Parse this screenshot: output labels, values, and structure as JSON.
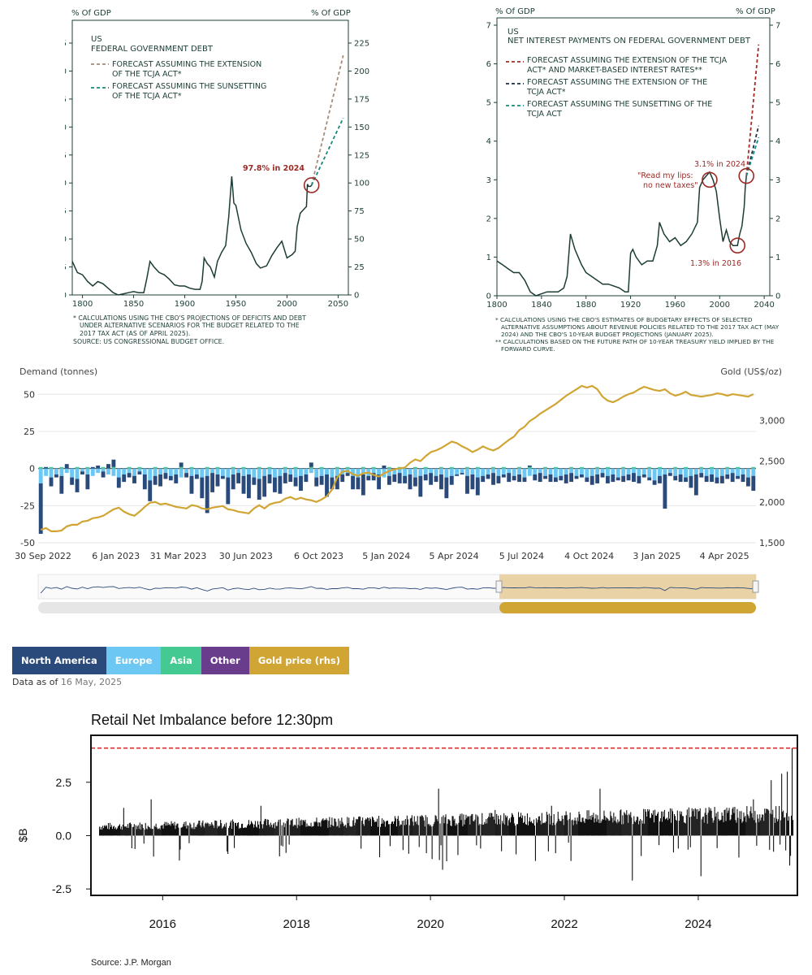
{
  "debt_chart": {
    "left_unit": "% Of GDP",
    "right_unit": "% Of GDP",
    "title_line1": "US",
    "title_line2": "FEDERAL GOVERNMENT DEBT",
    "legend_line1a": "FORECAST ASSUMING THE EXTENSION",
    "legend_line1b": "OF THE TCJA ACT*",
    "legend_line2a": "FORECAST ASSUMING THE SUNSETTING",
    "legend_line2b": "OF THE TCJA ACT*",
    "annotation": "97.8% in 2024",
    "footnote1": "* CALCULATIONS USING THE CBO'S PROJECTIONS OF DEFICITS AND DEBT",
    "footnote2": "UNDER ALTERNATIVE SCENARIOS FOR THE BUDGET RELATED TO THE",
    "footnote3": "2017 TAX ACT (AS OF APRIL 2025).",
    "footnote4": "SOURCE: US CONGRESSIONAL BUDGET OFFICE."
  },
  "interest_chart": {
    "left_unit": "% Of GDP",
    "right_unit": "% Of GDP",
    "title_line1": "US",
    "title_line2": "NET INTEREST PAYMENTS ON FEDERAL GOVERNMENT DEBT",
    "legend_line1a": "FORECAST ASSUMING THE EXTENSION OF THE TCJA",
    "legend_line1b": "ACT* AND MARKET-BASED INTEREST RATES**",
    "legend_line2a": "FORECAST ASSUMING THE EXTENSION OF THE",
    "legend_line2b": "TCJA ACT*",
    "legend_line3a": "FORECAST ASSUMING THE SUNSETTING OF THE",
    "legend_line3b": "TCJA ACT",
    "annotation_quote1": "\"Read my lips:",
    "annotation_quote2": "no new taxes\"",
    "annotation_2024": "3.1% in 2024",
    "annotation_2016": "1.3% in 2016",
    "footnote1": "* CALCULATIONS USING THE CBO'S ESTIMATES OF BUDGETARY EFFECTS OF SELECTED",
    "footnote2": "ALTERNATIVE ASSUMPTIONS ABOUT REVENUE POLICIES RELATED TO THE 2017 TAX ACT (MAY",
    "footnote3": "2024) AND THE CBO'S 10-YEAR BUDGET PROJECTIONS (JANUARY 2025).",
    "footnote4": "** CALCULATIONS BASED ON THE FUTURE PATH OF 10-YEAR TREASURY YIELD IMPLIED BY THE",
    "footnote5": "FORWARD CURVE."
  },
  "gold_chart": {
    "left_axis_title": "Demand (tonnes)",
    "right_axis_title": "Gold (US$/oz)",
    "legend": [
      "North America",
      "Europe",
      "Asia",
      "Other",
      "Gold price (rhs)"
    ],
    "as_of_label": "Data as of",
    "as_of_date": "16 May, 2025"
  },
  "retail_chart": {
    "title": "Retail Net Imbalance before 12:30pm",
    "ylabel": "$B",
    "source": "Source: J.P. Morgan"
  },
  "colors": {
    "dark_green": "#1c3d36",
    "brown_dash": "#a58b78",
    "teal_dash": "#18897a",
    "red_dash": "#a52a24",
    "navy_dash": "#1f2f49",
    "annot_red": "#9b2a25",
    "north_america": "#2a4a7b",
    "europe": "#6cc8f2",
    "asia": "#45c992",
    "other": "#6a3d8c",
    "gold": "#d1a534"
  },
  "chart_data": [
    {
      "type": "line",
      "title": "US FEDERAL GOVERNMENT DEBT",
      "ylabel": "% Of GDP",
      "xlim": [
        1790,
        2060
      ],
      "ylim": [
        0,
        225
      ],
      "xticks": [
        "1800",
        "1850",
        "1900",
        "1950",
        "2000",
        "2050"
      ],
      "yticks": [
        "0",
        "25",
        "50",
        "75",
        "100",
        "125",
        "150",
        "175",
        "200",
        "225"
      ],
      "series": [
        {
          "name": "Debt",
          "x": [
            1790,
            1795,
            1800,
            1805,
            1810,
            1815,
            1820,
            1825,
            1830,
            1835,
            1840,
            1845,
            1850,
            1855,
            1860,
            1863,
            1866,
            1870,
            1875,
            1880,
            1885,
            1890,
            1895,
            1900,
            1905,
            1910,
            1915,
            1917,
            1919,
            1922,
            1925,
            1929,
            1932,
            1936,
            1940,
            1943,
            1946,
            1948,
            1950,
            1955,
            1960,
            1965,
            1970,
            1974,
            1980,
            1985,
            1990,
            1995,
            2000,
            2005,
            2008,
            2010,
            2013,
            2016,
            2019,
            2020,
            2021,
            2022,
            2023,
            2024
          ],
          "y": [
            30,
            20,
            18,
            12,
            8,
            12,
            10,
            6,
            2,
            0,
            1,
            2,
            3,
            2,
            2,
            15,
            30,
            25,
            20,
            18,
            14,
            9,
            8,
            8,
            6,
            5,
            5,
            12,
            33,
            28,
            25,
            16,
            30,
            38,
            44,
            70,
            106,
            82,
            80,
            58,
            46,
            38,
            28,
            24,
            26,
            35,
            42,
            48,
            33,
            36,
            39,
            61,
            73,
            76,
            79,
            99,
            97,
            97,
            97,
            98
          ]
        },
        {
          "name": "FORECAST ASSUMING THE EXTENSION OF THE TCJA ACT*",
          "x": [
            2024,
            2055
          ],
          "y": [
            98,
            214
          ]
        },
        {
          "name": "FORECAST ASSUMING THE SUNSETTING OF THE TCJA ACT*",
          "x": [
            2024,
            2055
          ],
          "y": [
            98,
            158
          ]
        }
      ],
      "annotations": [
        "97.8% in 2024"
      ]
    },
    {
      "type": "line",
      "title": "US NET INTEREST PAYMENTS ON FEDERAL GOVERNMENT DEBT",
      "ylabel": "% Of GDP",
      "xlim": [
        1800,
        2045
      ],
      "ylim": [
        0,
        7
      ],
      "xticks": [
        "1800",
        "1840",
        "1880",
        "1920",
        "1960",
        "2000",
        "2040"
      ],
      "yticks": [
        "0",
        "1",
        "2",
        "3",
        "4",
        "5",
        "6",
        "7"
      ],
      "series": [
        {
          "name": "Net interest",
          "x": [
            1800,
            1805,
            1810,
            1815,
            1820,
            1825,
            1830,
            1835,
            1840,
            1845,
            1850,
            1855,
            1860,
            1863,
            1866,
            1870,
            1873,
            1876,
            1880,
            1885,
            1890,
            1895,
            1900,
            1905,
            1910,
            1915,
            1918,
            1920,
            1922,
            1925,
            1930,
            1935,
            1940,
            1944,
            1946,
            1950,
            1955,
            1960,
            1965,
            1970,
            1975,
            1980,
            1982,
            1985,
            1988,
            1991,
            1994,
            1997,
            2000,
            2003,
            2006,
            2009,
            2012,
            2016,
            2018,
            2020,
            2022,
            2023,
            2024
          ],
          "y": [
            0.9,
            0.8,
            0.7,
            0.6,
            0.6,
            0.4,
            0.1,
            0.0,
            0.05,
            0.1,
            0.1,
            0.1,
            0.2,
            0.5,
            1.6,
            1.2,
            1.0,
            0.8,
            0.6,
            0.5,
            0.4,
            0.3,
            0.3,
            0.25,
            0.2,
            0.1,
            0.1,
            1.1,
            1.2,
            1.0,
            0.8,
            0.9,
            0.9,
            1.3,
            1.9,
            1.6,
            1.4,
            1.5,
            1.3,
            1.4,
            1.6,
            1.9,
            2.8,
            3.0,
            3.1,
            3.2,
            3.0,
            2.7,
            2.0,
            1.4,
            1.7,
            1.4,
            1.3,
            1.3,
            1.6,
            1.8,
            2.3,
            2.8,
            3.1
          ]
        },
        {
          "name": "FORECAST ASSUMING THE EXTENSION OF THE TCJA ACT* AND MARKET-BASED INTEREST RATES**",
          "x": [
            2024,
            2035
          ],
          "y": [
            3.1,
            6.5
          ]
        },
        {
          "name": "FORECAST ASSUMING THE EXTENSION OF THE TCJA ACT*",
          "x": [
            2024,
            2035
          ],
          "y": [
            3.1,
            4.4
          ]
        },
        {
          "name": "FORECAST ASSUMING THE SUNSETTING OF THE TCJA ACT",
          "x": [
            2024,
            2035
          ],
          "y": [
            3.1,
            4.1
          ]
        }
      ],
      "annotations": [
        "\"Read my lips: no new taxes\"",
        "3.1% in 2024",
        "1.3% in 2016"
      ]
    },
    {
      "type": "bar",
      "title": "",
      "ylabel": "Demand (tonnes)",
      "y2label": "Gold (US$/oz)",
      "ylim": [
        -50,
        60
      ],
      "y2lim": [
        1500,
        3500
      ],
      "yticks": [
        "-50",
        "-25",
        "0",
        "25",
        "50"
      ],
      "y2ticks": [
        "1,500",
        "2,000",
        "2,500",
        "3,000"
      ],
      "xticks": [
        "30 Sep 2022",
        "6 Jan 2023",
        "31 Mar 2023",
        "30 Jun 2023",
        "6 Oct 2023",
        "5 Jan 2024",
        "5 Apr 2024",
        "5 Jul 2024",
        "4 Oct 2024",
        "3 Jan 2025",
        "4 Apr 2025"
      ],
      "weeks": 138,
      "series": [
        {
          "name": "North America",
          "values": [
            -34,
            1,
            -6,
            -2,
            -12,
            3,
            -5,
            -9,
            -2,
            -10,
            1,
            2,
            -4,
            3,
            5,
            -7,
            -5,
            -3,
            -5,
            -2,
            -10,
            -14,
            -6,
            -8,
            -4,
            -3,
            -6,
            3,
            -3,
            -12,
            -3,
            -14,
            -25,
            -13,
            -8,
            -2,
            -18,
            -10,
            -7,
            -12,
            -16,
            -5,
            -14,
            -14,
            -6,
            -10,
            -12,
            -7,
            -5,
            -6,
            -10,
            -5,
            3,
            -6,
            -6,
            -15,
            -8,
            -9,
            -5,
            -2,
            -9,
            -8,
            -14,
            -3,
            -5,
            -10,
            2,
            -6,
            -5,
            -7,
            -5,
            -10,
            -6,
            -14,
            -4,
            -8,
            -4,
            -10,
            -14,
            -6,
            -1,
            -1,
            -12,
            -10,
            -12,
            -4,
            -3,
            -8,
            -5,
            -2,
            -6,
            -3,
            -5,
            -3,
            1,
            -4,
            -6,
            -2,
            -5,
            -3,
            -3,
            -6,
            -6,
            -2,
            -2,
            -3,
            -6,
            -6,
            -3,
            -5,
            -5,
            -2,
            -4,
            -4,
            -6,
            -5,
            -2,
            -2,
            -3,
            -5,
            -23,
            -2,
            -3,
            -5,
            -3,
            -8,
            -14,
            -3,
            -4,
            -5,
            -4,
            -5,
            -3,
            -6,
            -2,
            -5,
            -6,
            -10
          ]
        },
        {
          "name": "Europe",
          "values": [
            -10,
            -5,
            -6,
            -4,
            -5,
            -3,
            -6,
            -7,
            -2,
            -4,
            -5,
            -3,
            -2,
            -4,
            -5,
            -6,
            -4,
            -3,
            -5,
            -2,
            -4,
            -8,
            -5,
            -4,
            -3,
            -5,
            -4,
            -6,
            -3,
            -5,
            -4,
            -6,
            -5,
            -3,
            -4,
            -5,
            -6,
            -4,
            -3,
            -5,
            -4,
            -6,
            -7,
            -5,
            -4,
            -6,
            -5,
            -3,
            -4,
            -6,
            -5,
            -4,
            -3,
            -6,
            -5,
            -4,
            -6,
            -5,
            -4,
            -3,
            -5,
            -6,
            -4,
            -5,
            -3,
            -4,
            -6,
            -5,
            -4,
            -3,
            -5,
            -4,
            -6,
            -5,
            -4,
            -3,
            -5,
            -4,
            -6,
            -5,
            -4,
            -3,
            -5,
            -4,
            -6,
            -5,
            -4,
            -3,
            -5,
            -4,
            -3,
            -5,
            -4,
            -6,
            -5,
            -4,
            -3,
            -5,
            -4,
            -6,
            -5,
            -4,
            -3,
            -5,
            -4,
            -6,
            -5,
            -4,
            -3,
            -5,
            -4,
            -6,
            -5,
            -4,
            -3,
            -5,
            -4,
            -6,
            -8,
            -5,
            -4,
            -3,
            -5,
            -4,
            -6,
            -5,
            -4,
            -3,
            -5,
            -4,
            -6,
            -5,
            -4,
            -3,
            -5,
            -4,
            -6,
            -5
          ]
        },
        {
          "name": "Asia",
          "values": [
            1,
            0,
            1,
            0,
            1,
            0,
            0,
            1,
            0,
            1,
            0,
            0,
            1,
            0,
            1,
            0,
            0,
            1,
            0,
            1,
            0,
            0,
            1,
            0,
            1,
            0,
            0,
            1,
            0,
            1,
            0,
            0,
            1,
            0,
            1,
            0,
            0,
            1,
            0,
            1,
            0,
            0,
            1,
            0,
            1,
            0,
            0,
            1,
            0,
            1,
            0,
            0,
            1,
            0,
            1,
            0,
            0,
            1,
            0,
            1,
            0,
            0,
            1,
            0,
            1,
            0,
            0,
            1,
            0,
            1,
            0,
            0,
            1,
            0,
            1,
            0,
            0,
            1,
            0,
            1,
            0,
            0,
            1,
            0,
            1,
            0,
            0,
            1,
            0,
            1,
            0,
            0,
            1,
            0,
            1,
            0,
            0,
            1,
            0,
            1,
            0,
            0,
            1,
            0,
            1,
            0,
            0,
            1,
            0,
            1,
            0,
            0,
            1,
            0,
            1,
            0,
            0,
            1,
            0,
            1,
            0,
            0,
            1,
            0,
            1,
            0,
            0,
            1,
            0,
            1,
            0,
            0,
            1,
            0,
            1,
            0,
            0,
            1
          ]
        },
        {
          "name": "Gold price (rhs)",
          "values": [
            1660,
            1680,
            1640,
            1640,
            1650,
            1700,
            1720,
            1720,
            1760,
            1770,
            1800,
            1810,
            1830,
            1870,
            1910,
            1930,
            1880,
            1850,
            1830,
            1880,
            1940,
            1990,
            2000,
            1970,
            1980,
            1960,
            1940,
            1930,
            1920,
            1960,
            1950,
            1920,
            1910,
            1930,
            1940,
            1950,
            1910,
            1900,
            1880,
            1870,
            1860,
            1920,
            1960,
            1920,
            1970,
            1990,
            2000,
            2040,
            2060,
            2030,
            2050,
            2030,
            2020,
            2000,
            2030,
            2070,
            2150,
            2300,
            2370,
            2380,
            2340,
            2320,
            2350,
            2360,
            2330,
            2310,
            2350,
            2380,
            2400,
            2410,
            2420,
            2480,
            2520,
            2500,
            2560,
            2610,
            2630,
            2660,
            2700,
            2740,
            2720,
            2680,
            2650,
            2610,
            2640,
            2680,
            2650,
            2630,
            2660,
            2710,
            2760,
            2800,
            2880,
            2920,
            2990,
            3030,
            3080,
            3120,
            3160,
            3200,
            3250,
            3300,
            3340,
            3380,
            3420,
            3400,
            3420,
            3380,
            3290,
            3240,
            3220,
            3250,
            3290,
            3320,
            3340,
            3380,
            3410,
            3390,
            3370,
            3360,
            3380,
            3330,
            3300,
            3320,
            3350,
            3310,
            3300,
            3290,
            3300,
            3310,
            3330,
            3320,
            3300,
            3320,
            3310,
            3300,
            3290,
            3320
          ]
        }
      ]
    },
    {
      "type": "bar",
      "title": "Retail Net Imbalance before 12:30pm",
      "ylabel": "$B",
      "ylim": [
        -2.8,
        4.7
      ],
      "yticks": [
        "-2.5",
        "0.0",
        "2.5"
      ],
      "xticks": [
        "2016",
        "2018",
        "2020",
        "2022",
        "2024"
      ],
      "reference_line": 4.1,
      "note": "daily series 2015–2025; noise band approx 0.2–0.8 with spikes to 2.2 and dips to -2.2, final spike 4.1"
    }
  ]
}
